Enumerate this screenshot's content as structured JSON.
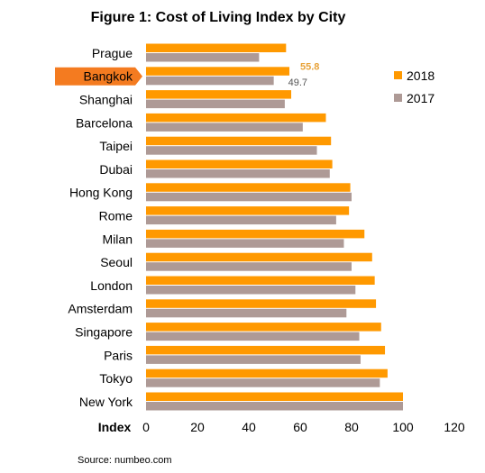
{
  "chart_data": {
    "type": "bar",
    "orientation": "horizontal",
    "title": "Figure 1: Cost of Living Index by City",
    "xlabel": "Index",
    "source": "Source: numbeo.com",
    "categories": [
      "Prague",
      "Bangkok",
      "Shanghai",
      "Barcelona",
      "Taipei",
      "Dubai",
      "Hong Kong",
      "Rome",
      "Milan",
      "Seoul",
      "London",
      "Amsterdam",
      "Singapore",
      "Paris",
      "Tokyo",
      "New York"
    ],
    "series": [
      {
        "name": "2018",
        "color": "#FF9900",
        "values": [
          54.5,
          55.8,
          56.5,
          70.0,
          72.0,
          72.5,
          79.5,
          79.0,
          85.0,
          88.0,
          89.0,
          89.5,
          91.5,
          93.0,
          94.0,
          100.0
        ]
      },
      {
        "name": "2017",
        "color": "#AE9A96",
        "values": [
          44.0,
          49.7,
          54.0,
          61.0,
          66.5,
          71.5,
          80.0,
          74.0,
          77.0,
          80.0,
          81.5,
          78.0,
          83.0,
          83.5,
          91.0,
          100.0
        ]
      }
    ],
    "xlim": [
      0,
      120
    ],
    "xticks": [
      0,
      20,
      40,
      60,
      80,
      100,
      120
    ],
    "legend_position": "right",
    "grid": false,
    "highlight": {
      "category": "Bangkok",
      "label_2018": "55.8",
      "label_2017": "49.7",
      "marker_color": "#F47B20"
    }
  }
}
